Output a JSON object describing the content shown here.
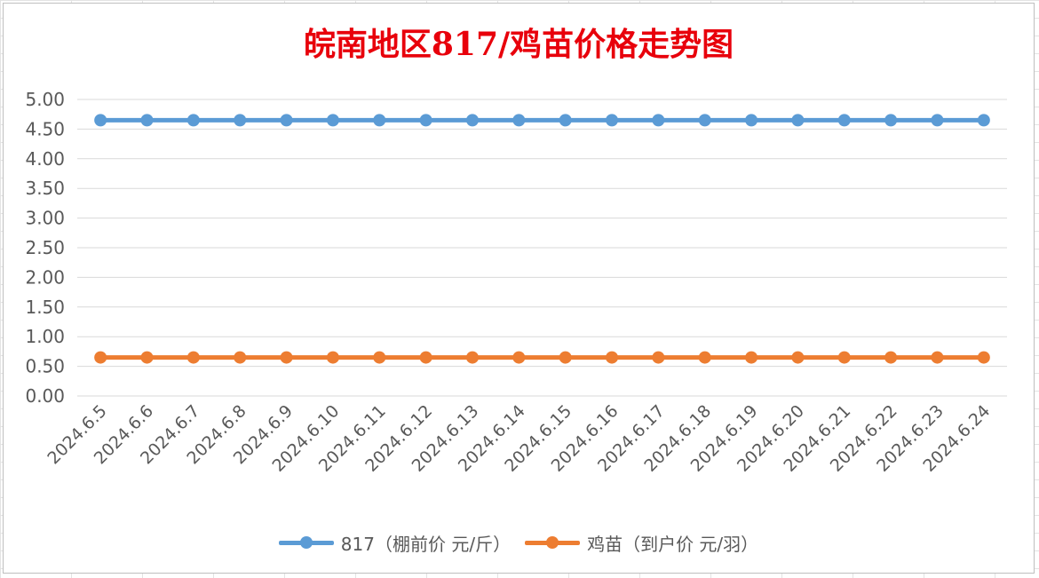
{
  "chart_data": {
    "type": "line",
    "title": "皖南地区817/鸡苗价格走势图",
    "xlabel": "",
    "ylabel": "",
    "ylim": [
      0,
      5
    ],
    "y_ticks": [
      "0.00",
      "0.50",
      "1.00",
      "1.50",
      "2.00",
      "2.50",
      "3.00",
      "3.50",
      "4.00",
      "4.50",
      "5.00"
    ],
    "categories": [
      "2024.6.5",
      "2024.6.6",
      "2024.6.7",
      "2024.6.8",
      "2024.6.9",
      "2024.6.10",
      "2024.6.11",
      "2024.6.12",
      "2024.6.13",
      "2024.6.14",
      "2024.6.15",
      "2024.6.16",
      "2024.6.17",
      "2024.6.18",
      "2024.6.19",
      "2024.6.20",
      "2024.6.21",
      "2024.6.22",
      "2024.6.23",
      "2024.6.24"
    ],
    "series": [
      {
        "name": "817（棚前价 元/斤）",
        "color": "#5b9bd5",
        "values": [
          4.65,
          4.65,
          4.65,
          4.65,
          4.65,
          4.65,
          4.65,
          4.65,
          4.65,
          4.65,
          4.65,
          4.65,
          4.65,
          4.65,
          4.65,
          4.65,
          4.65,
          4.65,
          4.65,
          4.65
        ]
      },
      {
        "name": "鸡苗（到户价 元/羽）",
        "color": "#ed7d31",
        "values": [
          0.65,
          0.65,
          0.65,
          0.65,
          0.65,
          0.65,
          0.65,
          0.65,
          0.65,
          0.65,
          0.65,
          0.65,
          0.65,
          0.65,
          0.65,
          0.65,
          0.65,
          0.65,
          0.65,
          0.65
        ]
      }
    ],
    "grid": true,
    "legend_position": "bottom"
  }
}
